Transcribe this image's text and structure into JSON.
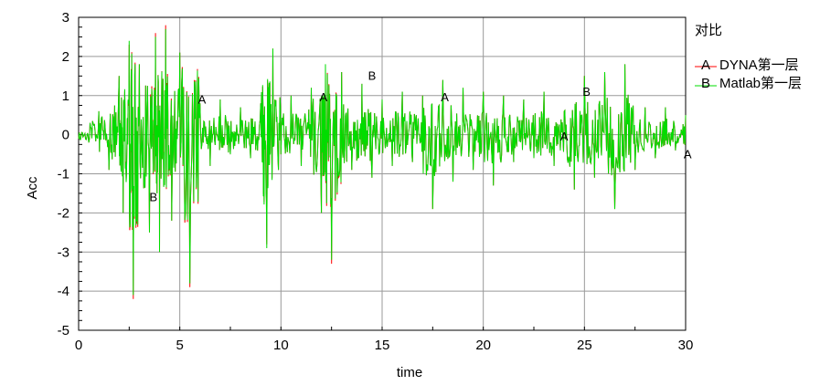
{
  "chart_data": {
    "type": "line",
    "title": "",
    "xlabel": "time",
    "ylabel": "Acc",
    "xlim": [
      0,
      30
    ],
    "ylim": [
      -5,
      3
    ],
    "xticks": [
      0,
      5,
      10,
      15,
      20,
      25,
      30
    ],
    "yticks": [
      -5,
      -4,
      -3,
      -2,
      -1,
      0,
      1,
      2,
      3
    ],
    "grid": true,
    "legend": {
      "title": "对比",
      "placement": "right-top",
      "entries": [
        {
          "marker": "A",
          "label": "DYNA第一层",
          "color": "#ff0000"
        },
        {
          "marker": "B",
          "label": "Matlab第一层",
          "color": "#00dd00"
        }
      ]
    },
    "series": [
      {
        "name": "DYNA第一层",
        "marker": "A",
        "color": "#ff0000",
        "x": [
          0,
          0.5,
          1.0,
          1.5,
          2.0,
          2.2,
          2.5,
          2.7,
          3.0,
          3.5,
          3.8,
          4.0,
          4.3,
          4.6,
          5.0,
          5.5,
          6.0,
          6.5,
          7.0,
          7.5,
          8.0,
          8.5,
          9.0,
          9.3,
          9.6,
          10.0,
          10.5,
          11.0,
          11.5,
          12.0,
          12.2,
          12.5,
          13.0,
          13.5,
          14.0,
          14.5,
          15.0,
          15.5,
          16.0,
          16.5,
          17.0,
          17.5,
          18.0,
          18.5,
          19.0,
          19.5,
          20.0,
          20.5,
          21.0,
          21.5,
          22.0,
          22.5,
          23.0,
          23.5,
          24.0,
          24.5,
          25.0,
          25.5,
          26.0,
          26.5,
          27.0,
          27.5,
          28.0,
          28.5,
          29.0,
          29.5,
          30.0
        ],
        "y": [
          -0.1,
          -0.2,
          0.6,
          -0.9,
          1.5,
          -2.0,
          2.3,
          -4.2,
          1.8,
          -2.5,
          2.6,
          -3.0,
          2.8,
          -2.2,
          2.1,
          -3.9,
          0.8,
          -0.8,
          0.9,
          -0.5,
          0.7,
          -0.6,
          0.8,
          -2.8,
          2.2,
          -0.5,
          1.0,
          -0.8,
          1.2,
          -2.0,
          1.7,
          -3.3,
          1.6,
          -0.9,
          1.3,
          -1.1,
          0.9,
          -0.8,
          1.1,
          -0.7,
          1.0,
          -1.9,
          1.4,
          -1.2,
          1.2,
          -0.9,
          1.1,
          -1.3,
          1.0,
          -0.7,
          0.9,
          -0.6,
          1.1,
          -0.8,
          0.6,
          -1.4,
          1.5,
          -1.1,
          1.6,
          -1.9,
          1.8,
          -0.9,
          0.7,
          -0.6,
          0.7,
          -0.4,
          0.5
        ]
      },
      {
        "name": "Matlab第一层",
        "marker": "B",
        "color": "#00dd00",
        "x": [
          0,
          0.5,
          1.0,
          1.5,
          2.0,
          2.2,
          2.5,
          2.7,
          3.0,
          3.5,
          3.8,
          4.0,
          4.3,
          4.6,
          5.0,
          5.5,
          6.0,
          6.5,
          7.0,
          7.5,
          8.0,
          8.5,
          9.0,
          9.3,
          9.6,
          10.0,
          10.5,
          11.0,
          11.5,
          12.0,
          12.2,
          12.5,
          13.0,
          13.5,
          14.0,
          14.5,
          15.0,
          15.5,
          16.0,
          16.5,
          17.0,
          17.5,
          18.0,
          18.5,
          19.0,
          19.5,
          20.0,
          20.5,
          21.0,
          21.5,
          22.0,
          22.5,
          23.0,
          23.5,
          24.0,
          24.5,
          25.0,
          25.5,
          26.0,
          26.5,
          27.0,
          27.5,
          28.0,
          28.5,
          29.0,
          29.5,
          30.0
        ],
        "y": [
          -0.1,
          -0.2,
          0.6,
          -0.9,
          1.5,
          -2.0,
          2.4,
          -4.1,
          1.8,
          -2.5,
          2.5,
          -3.0,
          2.7,
          -2.2,
          2.1,
          -3.8,
          0.8,
          -0.8,
          0.9,
          -0.5,
          0.7,
          -0.6,
          0.8,
          -2.9,
          2.2,
          -0.5,
          1.0,
          -0.8,
          1.2,
          -2.0,
          1.8,
          -3.2,
          1.6,
          -0.9,
          1.3,
          -1.1,
          0.9,
          -0.8,
          1.1,
          -0.7,
          1.0,
          -1.9,
          1.4,
          -1.2,
          1.2,
          -0.9,
          1.1,
          -1.3,
          1.0,
          -0.7,
          0.9,
          -0.6,
          1.1,
          -0.8,
          0.6,
          -1.4,
          1.5,
          -1.1,
          1.6,
          -1.9,
          1.8,
          -0.9,
          0.7,
          -0.6,
          0.7,
          -0.4,
          0.5
        ]
      }
    ],
    "annotations": [
      {
        "text": "A",
        "x": 6.1,
        "y": 0.8
      },
      {
        "text": "A",
        "x": 12.1,
        "y": 0.85
      },
      {
        "text": "A",
        "x": 18.1,
        "y": 0.85
      },
      {
        "text": "A",
        "x": 24.0,
        "y": -0.15
      },
      {
        "text": "A",
        "x": 30.1,
        "y": -0.6
      },
      {
        "text": "B",
        "x": 3.7,
        "y": -1.7
      },
      {
        "text": "B",
        "x": 14.5,
        "y": 1.4
      },
      {
        "text": "B",
        "x": 25.1,
        "y": 1.0
      }
    ]
  }
}
